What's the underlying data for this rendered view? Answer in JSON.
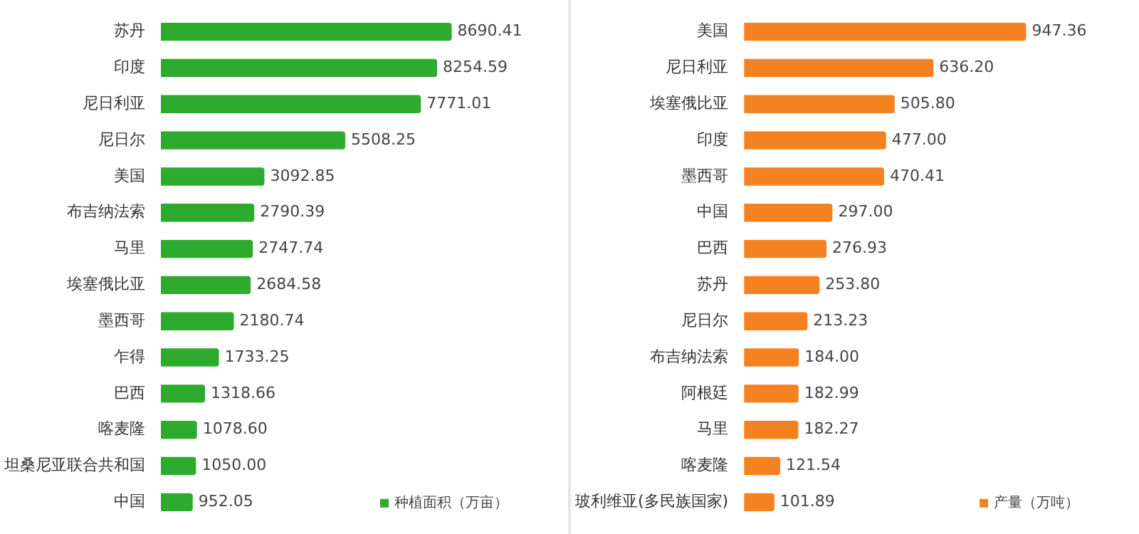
{
  "chart_data": [
    {
      "type": "bar",
      "orientation": "horizontal",
      "categories": [
        "苏丹",
        "印度",
        "尼日利亚",
        "尼日尔",
        "美国",
        "布吉纳法索",
        "马里",
        "埃塞俄比亚",
        "墨西哥",
        "乍得",
        "巴西",
        "喀麦隆",
        "坦桑尼亚联合共和国",
        "中国"
      ],
      "series": [
        {
          "name": "种植面积（万亩）",
          "color": "#2eaa2e",
          "values": [
            8690.41,
            8254.59,
            7771.01,
            5508.25,
            3092.85,
            2790.39,
            2747.74,
            2684.58,
            2180.74,
            1733.25,
            1318.66,
            1078.6,
            1050.0,
            952.05
          ],
          "value_labels": [
            "8690.41",
            "8254.59",
            "7771.01",
            "5508.25",
            "3092.85",
            "2790.39",
            "2747.74",
            "2684.58",
            "2180.74",
            "1733.25",
            "1318.66",
            "1078.60",
            "1050.00",
            "952.05"
          ]
        }
      ],
      "legend": "bottom right"
    },
    {
      "type": "bar",
      "orientation": "horizontal",
      "categories": [
        "美国",
        "尼日利亚",
        "埃塞俄比亚",
        "印度",
        "墨西哥",
        "中国",
        "巴西",
        "苏丹",
        "尼日尔",
        "布吉纳法索",
        "阿根廷",
        "马里",
        "喀麦隆",
        "玻利维亚(多民族国家)"
      ],
      "series": [
        {
          "name": "产量（万吨）",
          "color": "#f58220",
          "values": [
            947.36,
            636.2,
            505.8,
            477.0,
            470.41,
            297.0,
            276.93,
            253.8,
            213.23,
            184.0,
            182.99,
            182.27,
            121.54,
            101.89
          ],
          "value_labels": [
            "947.36",
            "636.20",
            "505.80",
            "477.00",
            "470.41",
            "297.00",
            "276.93",
            "253.80",
            "213.23",
            "184.00",
            "182.99",
            "182.27",
            "121.54",
            "101.89"
          ]
        }
      ],
      "legend": "bottom right"
    }
  ]
}
